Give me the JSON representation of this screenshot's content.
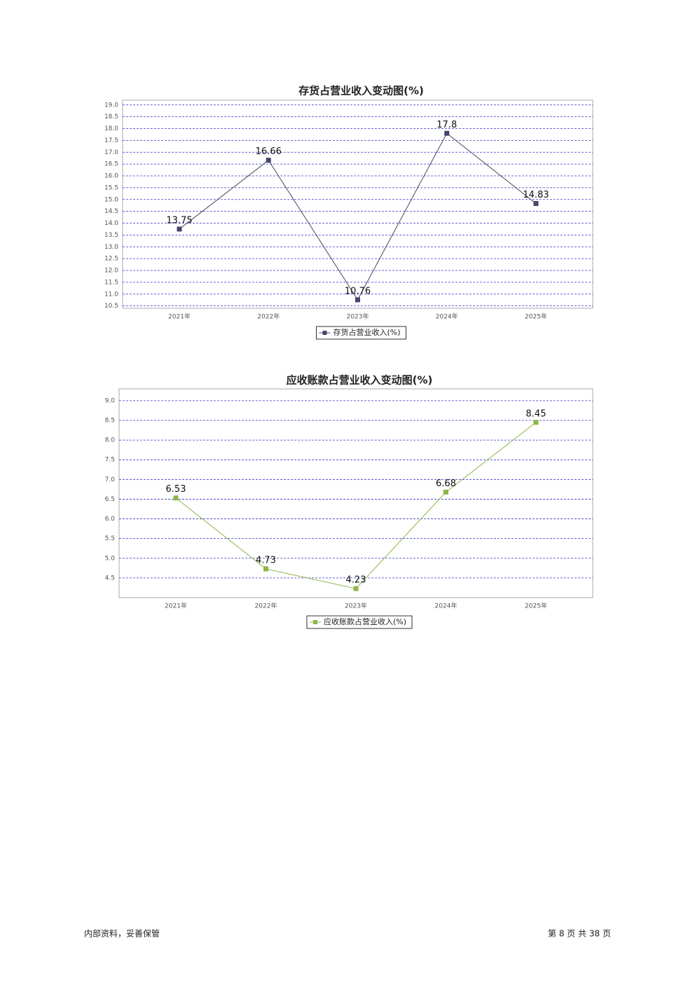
{
  "chart_data": [
    {
      "type": "line",
      "title": "存货占营业收入变动图(%)",
      "categories": [
        "2021年",
        "2022年",
        "2023年",
        "2024年",
        "2025年"
      ],
      "series": [
        {
          "name": "存货占营业收入(%)",
          "color": "#45456a",
          "values": [
            13.75,
            16.66,
            10.76,
            17.8,
            14.83
          ]
        }
      ],
      "ylim": [
        10.4,
        19.2
      ],
      "yticks": [
        10.5,
        {
          "value": 11,
          "label": "11.0"
        },
        11.5,
        {
          "value": 12,
          "label": "12.0"
        },
        12.5,
        {
          "value": 13,
          "label": "13.0"
        },
        13.5,
        {
          "value": 14,
          "label": "14.0"
        },
        14.5,
        {
          "value": 15,
          "label": "15.0"
        },
        15.5,
        {
          "value": 16,
          "label": "16.0"
        },
        16.5,
        {
          "value": 17,
          "label": "17.0"
        },
        17.5,
        {
          "value": 18,
          "label": "18.0"
        },
        18.5,
        {
          "value": 19,
          "label": "19.0"
        }
      ],
      "grid": true
    },
    {
      "type": "line",
      "title": "应收账款占营业收入变动图(%)",
      "categories": [
        "2021年",
        "2022年",
        "2023年",
        "2024年",
        "2025年"
      ],
      "series": [
        {
          "name": "应收账款占营业收入(%)",
          "color": "#8db54a",
          "values": [
            6.53,
            4.73,
            4.23,
            6.68,
            8.45
          ]
        }
      ],
      "ylim": [
        4.0,
        9.3
      ],
      "yticks": [
        4.5,
        {
          "value": 5,
          "label": "5.0"
        },
        5.5,
        {
          "value": 6,
          "label": "6.0"
        },
        6.5,
        {
          "value": 7,
          "label": "7.0"
        },
        7.5,
        {
          "value": 8,
          "label": "8.0"
        },
        8.5,
        {
          "value": 9,
          "label": "9.0"
        }
      ],
      "grid": true
    }
  ],
  "footer": {
    "note": "内部资料，妥善保管",
    "page": "第 8 页 共 38 页"
  }
}
